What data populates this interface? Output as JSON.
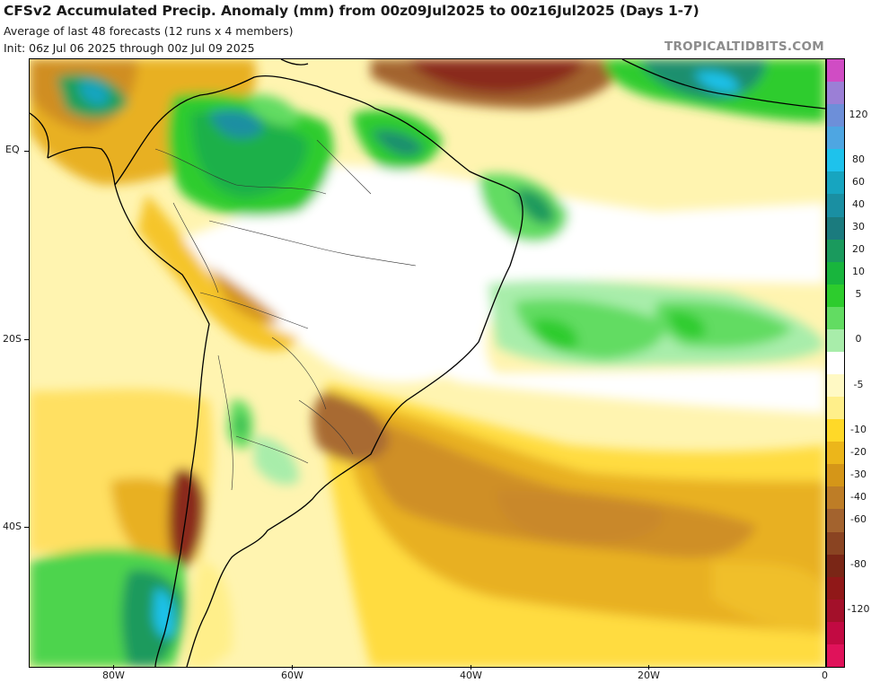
{
  "header": {
    "title": "CFSv2 Accumulated Precip. Anomaly (mm) from 00z09Jul2025 to 00z16Jul2025 (Days 1-7)",
    "subtitle1": "Average of last 48 forecasts (12 runs x 4 members)",
    "subtitle2": "Init: 06z Jul 06 2025 through 00z Jul 09 2025",
    "brand": "TROPICALTIDBITS.COM"
  },
  "axes": {
    "lat_labels": [
      "EQ",
      "20S",
      "40S"
    ],
    "lon_labels": [
      "80W",
      "60W",
      "40W",
      "20W",
      "0"
    ]
  },
  "colorbar": {
    "labels": [
      "120",
      "80",
      "60",
      "40",
      "30",
      "20",
      "10",
      "5",
      "0",
      "-5",
      "-10",
      "-20",
      "-30",
      "-40",
      "-60",
      "-80",
      "-120"
    ],
    "colors": [
      "#d04cc4",
      "#9b7fd6",
      "#6d8fd9",
      "#4ea6e2",
      "#1ec2ec",
      "#17a5c0",
      "#1a8fa2",
      "#1b7b7e",
      "#1a9a5d",
      "#18b53d",
      "#2dcc2d",
      "#62dc62",
      "#a8edaa",
      "#ffffff",
      "#fff9c4",
      "#ffef8a",
      "#ffd928",
      "#ecb61a",
      "#d59618",
      "#be7d26",
      "#a3632e",
      "#8a4422",
      "#7a2616",
      "#901818",
      "#a3102a",
      "#c20a42",
      "#e0125a"
    ]
  },
  "map": {
    "region": "South America and South Atlantic",
    "legend_unit": "mm"
  }
}
